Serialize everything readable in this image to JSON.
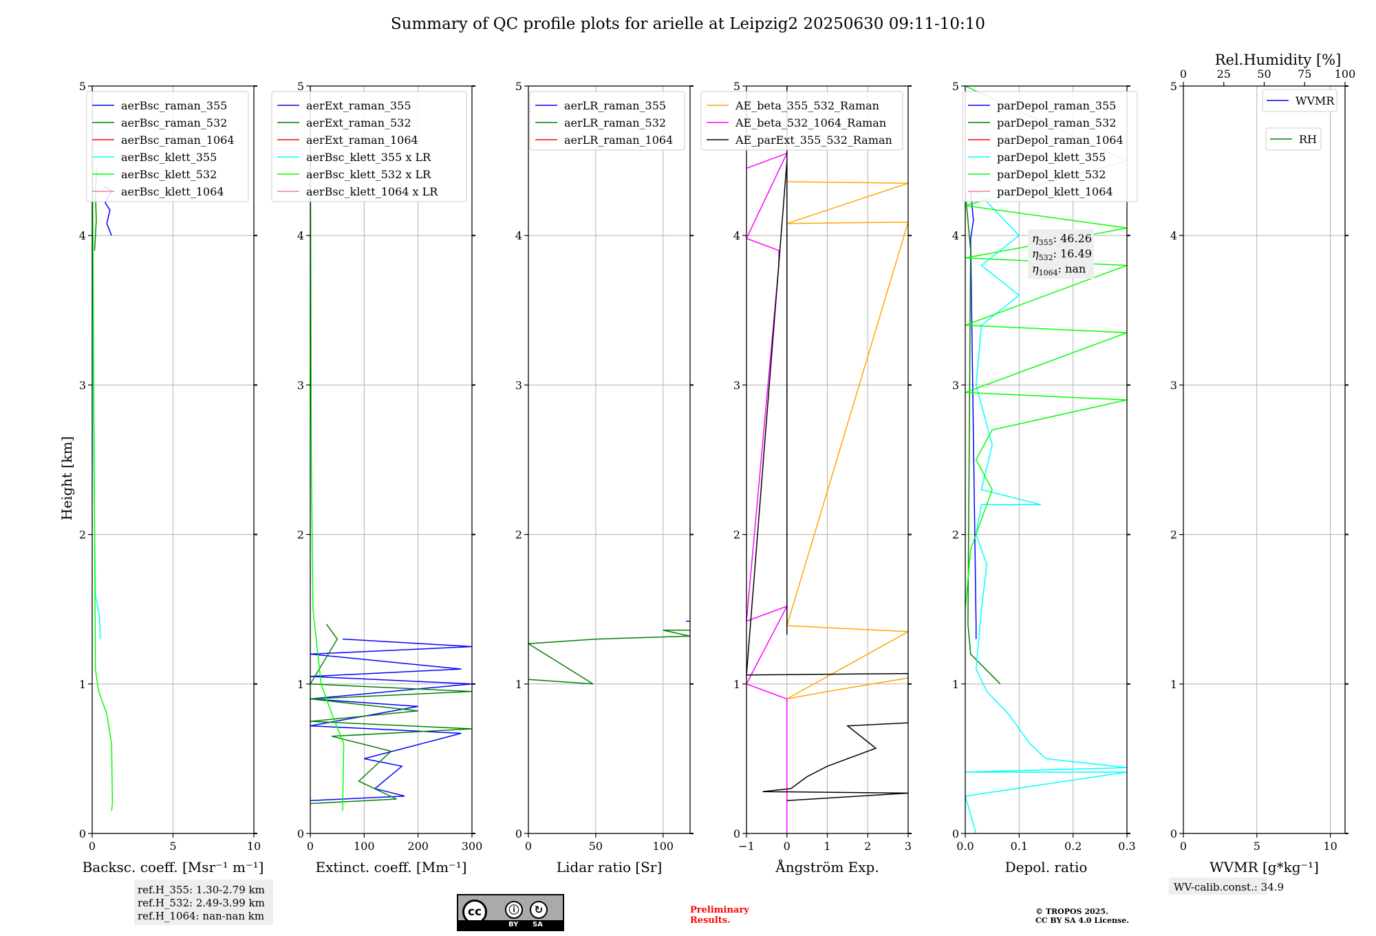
{
  "title": "Summary of QC profile plots for arielle at Leipzig2 20250630 09:11-10:10",
  "ylabel": "Height [km]",
  "y_ticks": [
    "0",
    "1",
    "2",
    "3",
    "4",
    "5"
  ],
  "ylim": [
    0,
    5
  ],
  "chart_data": [
    {
      "type": "line",
      "name": "backscatter",
      "xlabel": "Backsc. coeff. [Msr⁻¹ m⁻¹]",
      "xlim": [
        0,
        10
      ],
      "x_ticks": [
        0,
        5,
        10
      ],
      "x_tick_labels": [
        "0",
        "5",
        "10"
      ],
      "legend": "top-right",
      "series": [
        {
          "name": "aerBsc_raman_355",
          "color": "#0000ff",
          "points": [
            [
              1.2,
              4.0
            ],
            [
              0.9,
              4.08
            ],
            [
              1.1,
              4.17
            ],
            [
              0.8,
              4.22
            ],
            [
              1.2,
              4.3
            ],
            [
              0.7,
              4.33
            ]
          ]
        },
        {
          "name": "aerBsc_raman_532",
          "color": "#008000",
          "points": [
            [
              0.15,
              3.9
            ],
            [
              0.25,
              4.1
            ],
            [
              0.2,
              4.3
            ],
            [
              0.3,
              4.45
            ]
          ]
        },
        {
          "name": "aerBsc_raman_1064",
          "color": "#ff0000",
          "points": []
        },
        {
          "name": "aerBsc_klett_355",
          "color": "#00ffff",
          "points": [
            [
              0.5,
              1.3
            ],
            [
              0.45,
              1.45
            ],
            [
              0.2,
              1.6
            ],
            [
              0.1,
              2.5
            ],
            [
              0.05,
              3.5
            ],
            [
              0,
              5
            ]
          ]
        },
        {
          "name": "aerBsc_klett_532",
          "color": "#00ff00",
          "points": [
            [
              1.2,
              0.15
            ],
            [
              1.25,
              0.2
            ],
            [
              1.2,
              0.6
            ],
            [
              0.9,
              0.8
            ],
            [
              0.4,
              0.95
            ],
            [
              0.2,
              1.1
            ],
            [
              0.15,
              2
            ],
            [
              0.1,
              3
            ],
            [
              0.05,
              4
            ],
            [
              0,
              5
            ]
          ]
        },
        {
          "name": "aerBsc_klett_1064",
          "color": "#f08080",
          "points": []
        }
      ],
      "note_lines": [
        "ref.H_355: 1.30-2.79 km",
        "ref.H_532: 2.49-3.99 km",
        "ref.H_1064: nan-nan km"
      ]
    },
    {
      "type": "line",
      "name": "extinction",
      "xlabel": "Extinct. coeff. [Mm⁻¹]",
      "xlim": [
        0,
        300
      ],
      "x_ticks": [
        0,
        100,
        200,
        300
      ],
      "x_tick_labels": [
        "0",
        "100",
        "200",
        "300"
      ],
      "legend": "top-right",
      "series": [
        {
          "name": "aerExt_raman_355",
          "color": "#0000ff",
          "points": [
            [
              0,
              0.22
            ],
            [
              175,
              0.25
            ],
            [
              120,
              0.3
            ],
            [
              170,
              0.45
            ],
            [
              100,
              0.5
            ],
            [
              280,
              0.67
            ],
            [
              0,
              0.72
            ],
            [
              200,
              0.85
            ],
            [
              0,
              0.9
            ],
            [
              300,
              1.0
            ],
            [
              0,
              1.05
            ],
            [
              280,
              1.1
            ],
            [
              0,
              1.2
            ],
            [
              300,
              1.25
            ],
            [
              60,
              1.3
            ]
          ]
        },
        {
          "name": "aerExt_raman_532",
          "color": "#008000",
          "points": [
            [
              0,
              0.2
            ],
            [
              160,
              0.23
            ],
            [
              90,
              0.35
            ],
            [
              150,
              0.55
            ],
            [
              40,
              0.65
            ],
            [
              300,
              0.7
            ],
            [
              0,
              0.75
            ],
            [
              200,
              0.82
            ],
            [
              0,
              0.9
            ],
            [
              300,
              0.95
            ],
            [
              0,
              1.0
            ],
            [
              50,
              1.3
            ],
            [
              30,
              1.4
            ]
          ]
        },
        {
          "name": "aerExt_raman_1064",
          "color": "#ff0000",
          "points": []
        },
        {
          "name": "aerBsc_klett_355 x LR",
          "color": "#00ffff",
          "points": []
        },
        {
          "name": "aerBsc_klett_532 x LR",
          "color": "#00ff00",
          "points": [
            [
              60,
              0.15
            ],
            [
              62,
              0.6
            ],
            [
              40,
              0.8
            ],
            [
              20,
              1.0
            ],
            [
              5,
              1.5
            ],
            [
              2,
              2.5
            ],
            [
              0,
              5
            ]
          ]
        },
        {
          "name": "aerBsc_klett_1064 x LR",
          "color": "#f08080",
          "points": []
        }
      ]
    },
    {
      "type": "line",
      "name": "lidar-ratio",
      "xlabel": "Lidar ratio [Sr]",
      "xlim": [
        0,
        120
      ],
      "x_ticks": [
        0,
        50,
        100
      ],
      "x_tick_labels": [
        "0",
        "50",
        "100"
      ],
      "legend": "top-right",
      "series": [
        {
          "name": "aerLR_raman_355",
          "color": "#0000ff",
          "points": [
            [
              120,
              1.42
            ],
            [
              117,
              1.42
            ]
          ]
        },
        {
          "name": "aerLR_raman_532",
          "color": "#008000",
          "points": [
            [
              0,
              1.03
            ],
            [
              48,
              1.0
            ],
            [
              0,
              1.27
            ],
            [
              50,
              1.3
            ],
            [
              120,
              1.32
            ],
            [
              100,
              1.36
            ],
            [
              120,
              1.36
            ]
          ]
        },
        {
          "name": "aerLR_raman_1064",
          "color": "#ff0000",
          "points": []
        }
      ]
    },
    {
      "type": "line",
      "name": "angstrom",
      "xlabel": "Ångström Exp.",
      "xlim": [
        -1,
        3
      ],
      "x_ticks": [
        -1,
        0,
        1,
        2,
        3
      ],
      "x_tick_labels": [
        "−1",
        "0",
        "1",
        "2",
        "3"
      ],
      "legend": "top-right",
      "series": [
        {
          "name": "AE_beta_355_532_Raman",
          "color": "#ffa500",
          "points": [
            [
              0,
              4.36
            ],
            [
              3,
              4.35
            ],
            [
              0,
              4.08
            ],
            [
              3,
              4.09
            ],
            [
              0,
              1.39
            ],
            [
              3,
              1.35
            ],
            [
              0,
              0.9
            ],
            [
              1,
              0.95
            ],
            [
              3,
              1.04
            ]
          ]
        },
        {
          "name": "AE_beta_532_1064_Raman",
          "color": "#ff00ff",
          "points": [
            [
              -1,
              4.45
            ],
            [
              0,
              4.55
            ],
            [
              -1,
              3.98
            ],
            [
              -0.2,
              3.9
            ],
            [
              -0.2,
              3.8
            ],
            [
              -1,
              1.42
            ],
            [
              0,
              1.52
            ],
            [
              -1,
              1.0
            ],
            [
              0,
              0.9
            ],
            [
              0,
              0.0
            ]
          ]
        },
        {
          "name": "AE_parExt_355_532_Raman",
          "color": "#000000",
          "points": [
            [
              0,
              3.8
            ],
            [
              0,
              5
            ],
            [
              0,
              1.33
            ],
            [
              0,
              4.5
            ],
            [
              -1,
              1.06
            ],
            [
              3,
              1.07
            ],
            [
              3,
              0.74
            ],
            [
              1.5,
              0.72
            ],
            [
              2.2,
              0.57
            ],
            [
              1,
              0.45
            ],
            [
              0.5,
              0.38
            ],
            [
              0.1,
              0.3
            ],
            [
              -0.6,
              0.28
            ],
            [
              3,
              0.27
            ],
            [
              0,
              0.22
            ]
          ]
        }
      ]
    },
    {
      "type": "line",
      "name": "depolarization",
      "xlabel": "Depol. ratio",
      "xlim": [
        0,
        0.3
      ],
      "x_ticks": [
        0,
        0.1,
        0.2,
        0.3
      ],
      "x_tick_labels": [
        "0.0",
        "0.1",
        "0.2",
        "0.3"
      ],
      "legend": "top-left",
      "series": [
        {
          "name": "parDepol_raman_355",
          "color": "#0000ff",
          "points": [
            [
              0.02,
              1.3
            ],
            [
              0.02,
              1.4
            ],
            [
              0.01,
              3.98
            ],
            [
              0.015,
              4.1
            ],
            [
              0.01,
              4.3
            ]
          ]
        },
        {
          "name": "parDepol_raman_532",
          "color": "#008000",
          "points": [
            [
              0.065,
              1.0
            ],
            [
              0.01,
              1.2
            ],
            [
              0.005,
              1.4
            ],
            [
              0.01,
              3.9
            ],
            [
              0.0,
              4.3
            ]
          ]
        },
        {
          "name": "parDepol_raman_1064",
          "color": "#ff0000",
          "points": []
        },
        {
          "name": "parDepol_klett_355",
          "color": "#00ffff",
          "points": [
            [
              0.02,
              0.0
            ],
            [
              0.0,
              0.25
            ],
            [
              0.3,
              0.41
            ],
            [
              0.0,
              0.41
            ],
            [
              0.3,
              0.44
            ],
            [
              0.15,
              0.5
            ],
            [
              0.12,
              0.6
            ],
            [
              0.08,
              0.8
            ],
            [
              0.04,
              0.95
            ],
            [
              0.02,
              1.1
            ],
            [
              0.03,
              1.5
            ],
            [
              0.04,
              1.8
            ],
            [
              0.02,
              2.0
            ],
            [
              0.03,
              2.2
            ],
            [
              0.14,
              2.2
            ],
            [
              0.03,
              2.3
            ],
            [
              0.05,
              2.6
            ],
            [
              0.02,
              3.0
            ],
            [
              0.03,
              3.4
            ],
            [
              0.1,
              3.6
            ],
            [
              0.03,
              3.8
            ],
            [
              0.1,
              4.0
            ],
            [
              0.02,
              4.3
            ]
          ]
        },
        {
          "name": "parDepol_klett_532",
          "color": "#00ff00",
          "points": [
            [
              0.0,
              1.5
            ],
            [
              0.01,
              1.9
            ],
            [
              0.05,
              2.3
            ],
            [
              0.02,
              2.5
            ],
            [
              0.05,
              2.7
            ],
            [
              0.3,
              2.9
            ],
            [
              0.0,
              2.95
            ],
            [
              0.3,
              3.35
            ],
            [
              0.0,
              3.4
            ],
            [
              0.3,
              3.8
            ],
            [
              0.0,
              3.85
            ],
            [
              0.3,
              4.05
            ],
            [
              0.0,
              4.2
            ],
            [
              0.3,
              4.5
            ],
            [
              0.0,
              5.0
            ]
          ]
        },
        {
          "name": "parDepol_klett_1064",
          "color": "#f08080",
          "points": []
        }
      ],
      "eta_labels": [
        {
          "sub": "355",
          "value": ": 46.26"
        },
        {
          "sub": "532",
          "value": ": 16.49"
        },
        {
          "sub": "1064",
          "value": ": nan"
        }
      ]
    },
    {
      "type": "line",
      "name": "water-vapor",
      "xlabel": "WVMR [g*kg⁻¹]",
      "xlim": [
        0,
        11
      ],
      "x_ticks": [
        0,
        5,
        10
      ],
      "x_tick_labels": [
        "0",
        "5",
        "10"
      ],
      "top_axis": {
        "label": "Rel.Humidity [%]",
        "xlim": [
          0,
          100
        ],
        "ticks": [
          0,
          25,
          50,
          75,
          100
        ],
        "tick_labels": [
          "0",
          "25",
          "50",
          "75",
          "100"
        ]
      },
      "legend": "top-right",
      "series": [
        {
          "name": "WVMR",
          "color": "#0000ff",
          "points": []
        },
        {
          "name": "RH",
          "color": "#008000",
          "points": []
        }
      ],
      "note": "WV-calib.const.: 34.9"
    }
  ],
  "footer": {
    "license_cc": "cc",
    "license_by": "BY",
    "license_sa": "SA",
    "preliminary": [
      "Preliminary",
      "Results."
    ],
    "copyright": [
      "© TROPOS 2025.",
      "CC BY SA 4.0 License."
    ]
  },
  "colors": {
    "grid": "#b0b0b0",
    "note_bg": "#eeeeee",
    "preliminary": "#ff0000"
  }
}
